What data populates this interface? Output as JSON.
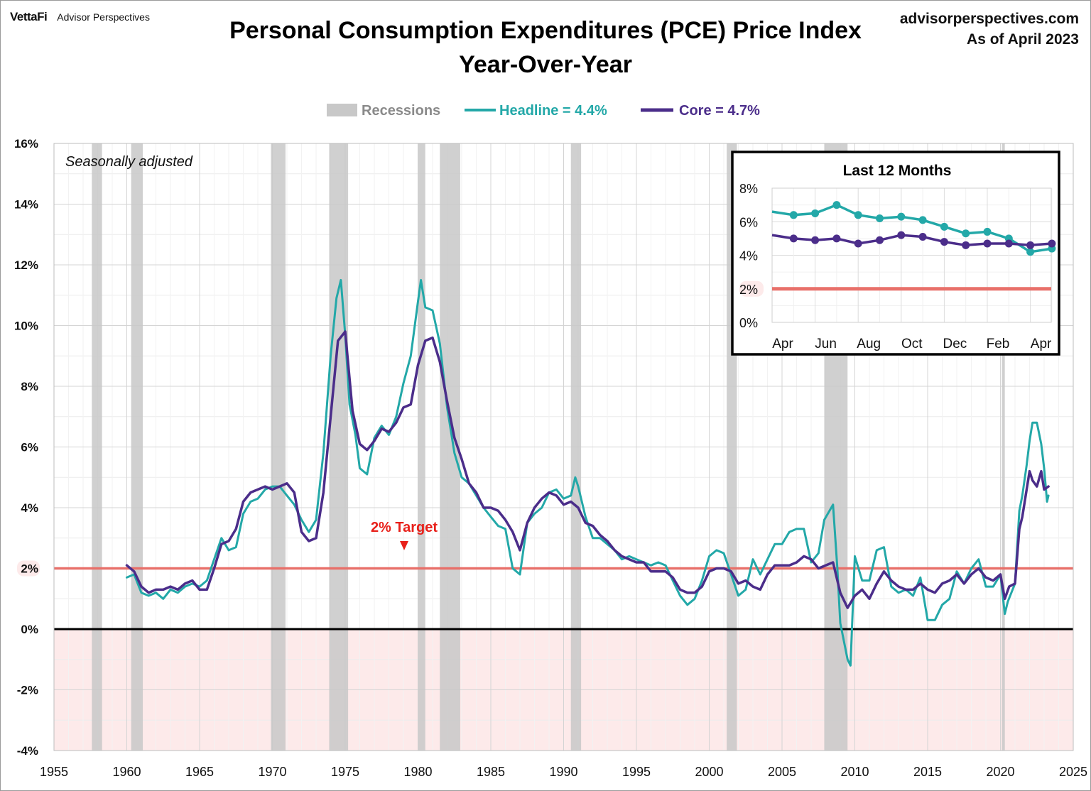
{
  "header": {
    "brand_logo": "VettaFi",
    "brand_name": "Advisor Perspectives",
    "site": "advisorperspectives.com",
    "as_of": "As of April 2023"
  },
  "chart_data": {
    "type": "line",
    "title": "Personal Consumption Expenditures (PCE) Price Index",
    "subtitle": "Year-Over-Year",
    "note": "Seasonally adjusted",
    "target_label": "2% Target",
    "xlim": [
      1955,
      2025
    ],
    "x_ticks": [
      1955,
      1960,
      1965,
      1970,
      1975,
      1980,
      1985,
      1990,
      1995,
      2000,
      2005,
      2010,
      2015,
      2020,
      2025
    ],
    "ylim": [
      -4,
      16
    ],
    "y_ticks": [
      -4,
      -2,
      0,
      2,
      4,
      6,
      8,
      10,
      12,
      14,
      16
    ],
    "y_tick_labels": [
      "-4%",
      "-2%",
      "0%",
      "2%",
      "4%",
      "6%",
      "8%",
      "10%",
      "12%",
      "14%",
      "16%"
    ],
    "target_value": 2,
    "grid": true,
    "legend_position": "top",
    "legend": [
      {
        "label": "Recessions",
        "kind": "recession"
      },
      {
        "label": "Headline = 4.4%",
        "kind": "headline"
      },
      {
        "label": "Core = 4.7%",
        "kind": "core"
      }
    ],
    "recessions": [
      [
        1957.6,
        1958.3
      ],
      [
        1960.3,
        1961.1
      ],
      [
        1969.9,
        1970.9
      ],
      [
        1973.9,
        1975.2
      ],
      [
        1980.0,
        1980.5
      ],
      [
        1981.5,
        1982.9
      ],
      [
        1990.5,
        1991.2
      ],
      [
        2001.2,
        2001.9
      ],
      [
        2007.9,
        2009.5
      ],
      [
        2020.1,
        2020.3
      ]
    ],
    "series": [
      {
        "name": "Headline",
        "points": [
          [
            1960.0,
            1.7
          ],
          [
            1960.5,
            1.8
          ],
          [
            1961.0,
            1.2
          ],
          [
            1961.5,
            1.1
          ],
          [
            1962.0,
            1.2
          ],
          [
            1962.5,
            1.0
          ],
          [
            1963.0,
            1.3
          ],
          [
            1963.5,
            1.2
          ],
          [
            1964.0,
            1.4
          ],
          [
            1964.5,
            1.5
          ],
          [
            1965.0,
            1.4
          ],
          [
            1965.5,
            1.6
          ],
          [
            1966.0,
            2.3
          ],
          [
            1966.5,
            3.0
          ],
          [
            1967.0,
            2.6
          ],
          [
            1967.5,
            2.7
          ],
          [
            1968.0,
            3.8
          ],
          [
            1968.5,
            4.2
          ],
          [
            1969.0,
            4.3
          ],
          [
            1969.5,
            4.6
          ],
          [
            1970.0,
            4.7
          ],
          [
            1970.5,
            4.7
          ],
          [
            1971.0,
            4.4
          ],
          [
            1971.5,
            4.1
          ],
          [
            1972.0,
            3.6
          ],
          [
            1972.5,
            3.2
          ],
          [
            1973.0,
            3.6
          ],
          [
            1973.5,
            5.8
          ],
          [
            1974.0,
            9.0
          ],
          [
            1974.4,
            10.9
          ],
          [
            1974.7,
            11.5
          ],
          [
            1975.0,
            9.7
          ],
          [
            1975.3,
            7.4
          ],
          [
            1975.7,
            6.4
          ],
          [
            1976.0,
            5.3
          ],
          [
            1976.5,
            5.1
          ],
          [
            1977.0,
            6.3
          ],
          [
            1977.5,
            6.7
          ],
          [
            1978.0,
            6.4
          ],
          [
            1978.5,
            7.0
          ],
          [
            1979.0,
            8.1
          ],
          [
            1979.5,
            9.0
          ],
          [
            1980.0,
            10.8
          ],
          [
            1980.2,
            11.5
          ],
          [
            1980.5,
            10.6
          ],
          [
            1981.0,
            10.5
          ],
          [
            1981.5,
            9.4
          ],
          [
            1982.0,
            7.3
          ],
          [
            1982.5,
            5.8
          ],
          [
            1983.0,
            5.0
          ],
          [
            1983.5,
            4.8
          ],
          [
            1984.0,
            4.4
          ],
          [
            1984.5,
            4.0
          ],
          [
            1985.0,
            3.7
          ],
          [
            1985.5,
            3.4
          ],
          [
            1986.0,
            3.3
          ],
          [
            1986.5,
            2.0
          ],
          [
            1987.0,
            1.8
          ],
          [
            1987.5,
            3.5
          ],
          [
            1988.0,
            3.8
          ],
          [
            1988.5,
            4.0
          ],
          [
            1989.0,
            4.5
          ],
          [
            1989.5,
            4.6
          ],
          [
            1990.0,
            4.3
          ],
          [
            1990.5,
            4.4
          ],
          [
            1990.8,
            5.0
          ],
          [
            1991.0,
            4.7
          ],
          [
            1991.5,
            3.7
          ],
          [
            1992.0,
            3.0
          ],
          [
            1992.5,
            3.0
          ],
          [
            1993.0,
            2.8
          ],
          [
            1993.5,
            2.6
          ],
          [
            1994.0,
            2.3
          ],
          [
            1994.5,
            2.4
          ],
          [
            1995.0,
            2.3
          ],
          [
            1995.5,
            2.2
          ],
          [
            1996.0,
            2.1
          ],
          [
            1996.5,
            2.2
          ],
          [
            1997.0,
            2.1
          ],
          [
            1997.5,
            1.6
          ],
          [
            1998.0,
            1.1
          ],
          [
            1998.5,
            0.8
          ],
          [
            1999.0,
            1.0
          ],
          [
            1999.5,
            1.6
          ],
          [
            2000.0,
            2.4
          ],
          [
            2000.5,
            2.6
          ],
          [
            2001.0,
            2.5
          ],
          [
            2001.5,
            1.8
          ],
          [
            2002.0,
            1.1
          ],
          [
            2002.5,
            1.3
          ],
          [
            2003.0,
            2.3
          ],
          [
            2003.5,
            1.8
          ],
          [
            2004.0,
            2.3
          ],
          [
            2004.5,
            2.8
          ],
          [
            2005.0,
            2.8
          ],
          [
            2005.5,
            3.2
          ],
          [
            2006.0,
            3.3
          ],
          [
            2006.5,
            3.3
          ],
          [
            2007.0,
            2.2
          ],
          [
            2007.5,
            2.5
          ],
          [
            2007.9,
            3.6
          ],
          [
            2008.5,
            4.1
          ],
          [
            2008.8,
            2.0
          ],
          [
            2009.0,
            0.2
          ],
          [
            2009.5,
            -1.0
          ],
          [
            2009.7,
            -1.2
          ],
          [
            2010.0,
            2.4
          ],
          [
            2010.5,
            1.6
          ],
          [
            2011.0,
            1.6
          ],
          [
            2011.5,
            2.6
          ],
          [
            2012.0,
            2.7
          ],
          [
            2012.5,
            1.4
          ],
          [
            2013.0,
            1.2
          ],
          [
            2013.5,
            1.3
          ],
          [
            2014.0,
            1.1
          ],
          [
            2014.5,
            1.7
          ],
          [
            2015.0,
            0.3
          ],
          [
            2015.5,
            0.3
          ],
          [
            2016.0,
            0.8
          ],
          [
            2016.5,
            1.0
          ],
          [
            2017.0,
            1.9
          ],
          [
            2017.5,
            1.5
          ],
          [
            2018.0,
            2.0
          ],
          [
            2018.5,
            2.3
          ],
          [
            2019.0,
            1.4
          ],
          [
            2019.5,
            1.4
          ],
          [
            2020.0,
            1.8
          ],
          [
            2020.3,
            0.5
          ],
          [
            2020.5,
            0.9
          ],
          [
            2021.0,
            1.5
          ],
          [
            2021.3,
            3.9
          ],
          [
            2021.5,
            4.4
          ],
          [
            2021.8,
            5.4
          ],
          [
            2022.0,
            6.2
          ],
          [
            2022.2,
            6.8
          ],
          [
            2022.5,
            6.8
          ],
          [
            2022.8,
            6.1
          ],
          [
            2023.0,
            5.3
          ],
          [
            2023.2,
            4.2
          ],
          [
            2023.3,
            4.4
          ]
        ]
      },
      {
        "name": "Core",
        "points": [
          [
            1960.0,
            2.1
          ],
          [
            1960.5,
            1.9
          ],
          [
            1961.0,
            1.4
          ],
          [
            1961.5,
            1.2
          ],
          [
            1962.0,
            1.3
          ],
          [
            1962.5,
            1.3
          ],
          [
            1963.0,
            1.4
          ],
          [
            1963.5,
            1.3
          ],
          [
            1964.0,
            1.5
          ],
          [
            1964.5,
            1.6
          ],
          [
            1965.0,
            1.3
          ],
          [
            1965.5,
            1.3
          ],
          [
            1966.0,
            2.0
          ],
          [
            1966.5,
            2.8
          ],
          [
            1967.0,
            2.9
          ],
          [
            1967.5,
            3.3
          ],
          [
            1968.0,
            4.2
          ],
          [
            1968.5,
            4.5
          ],
          [
            1969.0,
            4.6
          ],
          [
            1969.5,
            4.7
          ],
          [
            1970.0,
            4.6
          ],
          [
            1970.5,
            4.7
          ],
          [
            1971.0,
            4.8
          ],
          [
            1971.5,
            4.5
          ],
          [
            1972.0,
            3.2
          ],
          [
            1972.5,
            2.9
          ],
          [
            1973.0,
            3.0
          ],
          [
            1973.5,
            4.5
          ],
          [
            1974.0,
            7.0
          ],
          [
            1974.5,
            9.5
          ],
          [
            1975.0,
            9.8
          ],
          [
            1975.5,
            7.2
          ],
          [
            1976.0,
            6.1
          ],
          [
            1976.5,
            5.9
          ],
          [
            1977.0,
            6.2
          ],
          [
            1977.5,
            6.6
          ],
          [
            1978.0,
            6.5
          ],
          [
            1978.5,
            6.8
          ],
          [
            1979.0,
            7.3
          ],
          [
            1979.5,
            7.4
          ],
          [
            1980.0,
            8.7
          ],
          [
            1980.5,
            9.5
          ],
          [
            1981.0,
            9.6
          ],
          [
            1981.5,
            8.8
          ],
          [
            1982.0,
            7.5
          ],
          [
            1982.5,
            6.3
          ],
          [
            1983.0,
            5.6
          ],
          [
            1983.5,
            4.8
          ],
          [
            1984.0,
            4.5
          ],
          [
            1984.5,
            4.0
          ],
          [
            1985.0,
            4.0
          ],
          [
            1985.5,
            3.9
          ],
          [
            1986.0,
            3.6
          ],
          [
            1986.5,
            3.2
          ],
          [
            1987.0,
            2.6
          ],
          [
            1987.5,
            3.5
          ],
          [
            1988.0,
            4.0
          ],
          [
            1988.5,
            4.3
          ],
          [
            1989.0,
            4.5
          ],
          [
            1989.5,
            4.4
          ],
          [
            1990.0,
            4.1
          ],
          [
            1990.5,
            4.2
          ],
          [
            1991.0,
            4.0
          ],
          [
            1991.5,
            3.5
          ],
          [
            1992.0,
            3.4
          ],
          [
            1992.5,
            3.1
          ],
          [
            1993.0,
            2.9
          ],
          [
            1993.5,
            2.6
          ],
          [
            1994.0,
            2.4
          ],
          [
            1994.5,
            2.3
          ],
          [
            1995.0,
            2.2
          ],
          [
            1995.5,
            2.2
          ],
          [
            1996.0,
            1.9
          ],
          [
            1996.5,
            1.9
          ],
          [
            1997.0,
            1.9
          ],
          [
            1997.5,
            1.7
          ],
          [
            1998.0,
            1.3
          ],
          [
            1998.5,
            1.2
          ],
          [
            1999.0,
            1.2
          ],
          [
            1999.5,
            1.4
          ],
          [
            2000.0,
            1.9
          ],
          [
            2000.5,
            2.0
          ],
          [
            2001.0,
            2.0
          ],
          [
            2001.5,
            1.9
          ],
          [
            2002.0,
            1.5
          ],
          [
            2002.5,
            1.6
          ],
          [
            2003.0,
            1.4
          ],
          [
            2003.5,
            1.3
          ],
          [
            2004.0,
            1.8
          ],
          [
            2004.5,
            2.1
          ],
          [
            2005.0,
            2.1
          ],
          [
            2005.5,
            2.1
          ],
          [
            2006.0,
            2.2
          ],
          [
            2006.5,
            2.4
          ],
          [
            2007.0,
            2.3
          ],
          [
            2007.5,
            2.0
          ],
          [
            2008.0,
            2.1
          ],
          [
            2008.5,
            2.2
          ],
          [
            2009.0,
            1.2
          ],
          [
            2009.5,
            0.7
          ],
          [
            2010.0,
            1.1
          ],
          [
            2010.5,
            1.3
          ],
          [
            2011.0,
            1.0
          ],
          [
            2011.5,
            1.5
          ],
          [
            2012.0,
            1.9
          ],
          [
            2012.5,
            1.6
          ],
          [
            2013.0,
            1.4
          ],
          [
            2013.5,
            1.3
          ],
          [
            2014.0,
            1.3
          ],
          [
            2014.5,
            1.5
          ],
          [
            2015.0,
            1.3
          ],
          [
            2015.5,
            1.2
          ],
          [
            2016.0,
            1.5
          ],
          [
            2016.5,
            1.6
          ],
          [
            2017.0,
            1.8
          ],
          [
            2017.5,
            1.5
          ],
          [
            2018.0,
            1.8
          ],
          [
            2018.5,
            2.0
          ],
          [
            2019.0,
            1.7
          ],
          [
            2019.5,
            1.6
          ],
          [
            2020.0,
            1.8
          ],
          [
            2020.3,
            1.0
          ],
          [
            2020.6,
            1.4
          ],
          [
            2021.0,
            1.5
          ],
          [
            2021.3,
            3.3
          ],
          [
            2021.5,
            3.7
          ],
          [
            2021.8,
            4.6
          ],
          [
            2022.0,
            5.2
          ],
          [
            2022.2,
            4.9
          ],
          [
            2022.5,
            4.7
          ],
          [
            2022.8,
            5.2
          ],
          [
            2023.0,
            4.6
          ],
          [
            2023.3,
            4.7
          ]
        ]
      }
    ],
    "inset": {
      "title": "Last 12 Months",
      "ylim": [
        0,
        8
      ],
      "y_ticks": [
        0,
        2,
        4,
        6,
        8
      ],
      "y_tick_labels": [
        "0%",
        "2%",
        "4%",
        "6%",
        "8%"
      ],
      "x_labels": [
        "Apr",
        "Jun",
        "Aug",
        "Oct",
        "Dec",
        "Feb",
        "Apr"
      ],
      "target_value": 2,
      "headline": [
        6.6,
        6.4,
        6.5,
        7.0,
        6.4,
        6.2,
        6.3,
        6.1,
        5.7,
        5.3,
        5.4,
        5.0,
        4.2,
        4.4
      ],
      "core": [
        5.2,
        5.0,
        4.9,
        5.0,
        4.7,
        4.9,
        5.2,
        5.1,
        4.8,
        4.6,
        4.7,
        4.7,
        4.6,
        4.7
      ]
    },
    "colors": {
      "headline": "#23a8a8",
      "core": "#4b2d8a",
      "recession": "#c8c8c8",
      "target": "#e8706a",
      "target_label": "#e8201a",
      "negative_fill": "#fdeaea"
    }
  }
}
